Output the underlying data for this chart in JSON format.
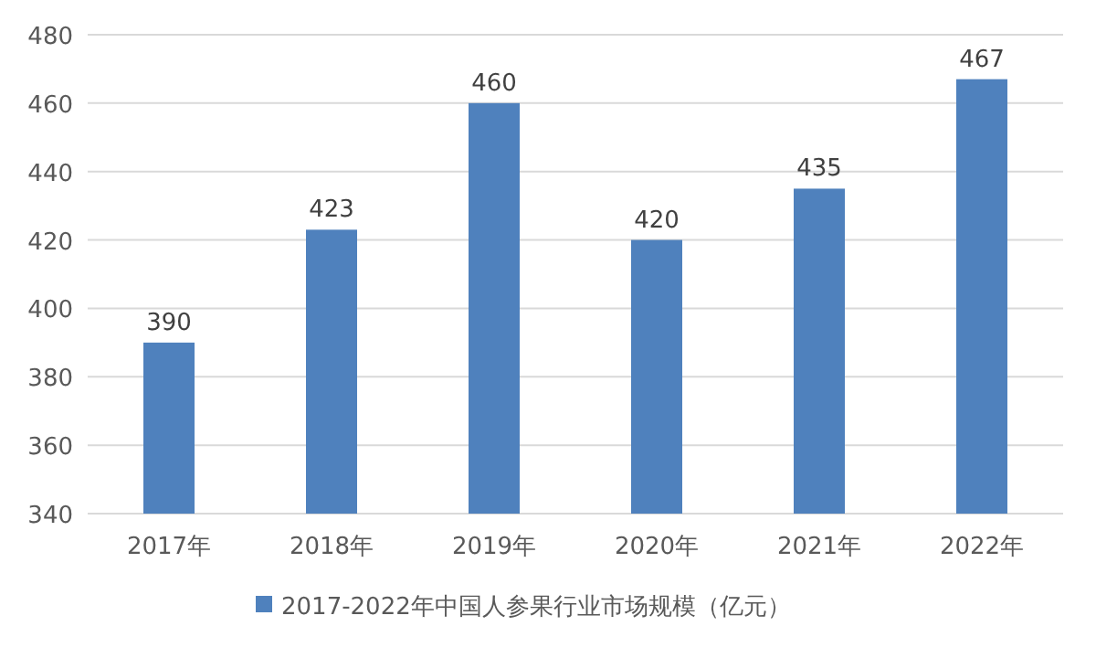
{
  "chart_data": {
    "type": "bar",
    "categories": [
      "2017年",
      "2018年",
      "2019年",
      "2020年",
      "2021年",
      "2022年"
    ],
    "series": [
      {
        "name": "2017-2022年中国人参果行业市场规模（亿元）",
        "color": "#4f81bd",
        "values": [
          390,
          423,
          460,
          420,
          435,
          467
        ]
      }
    ],
    "ylim": [
      340,
      480
    ],
    "yticks": [
      340,
      360,
      380,
      400,
      420,
      440,
      460,
      480
    ],
    "grid": "y",
    "legend": "bottom",
    "data_labels": true
  }
}
